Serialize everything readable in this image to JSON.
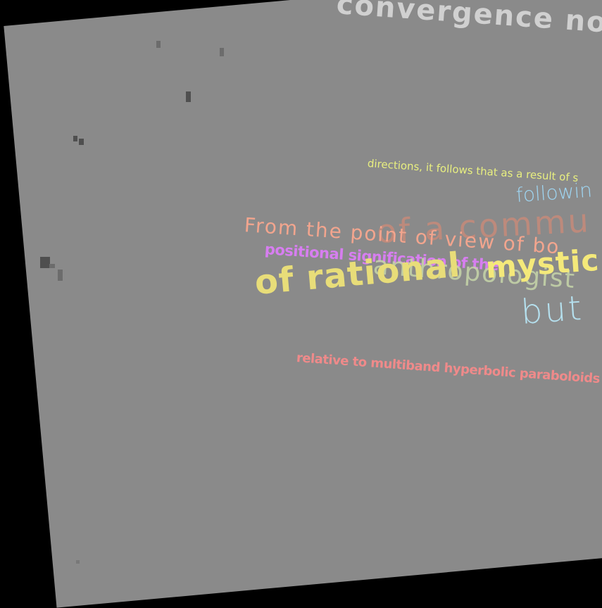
{
  "fragments": {
    "convergence": "convergence  nom",
    "directions": "directions, it follows that as a result of s",
    "following": "followin",
    "from_point": "From the point of view of bo",
    "commu": "of a commu",
    "positional": "positional signification of the",
    "anthrop": "anthropologist",
    "mystic": "mystic",
    "rational": "of rational",
    "but": "but",
    "relative": "relative to multiband hyperbolic paraboloids"
  },
  "colors": {
    "background": "#000000",
    "sheet": "#8a8a8a"
  }
}
